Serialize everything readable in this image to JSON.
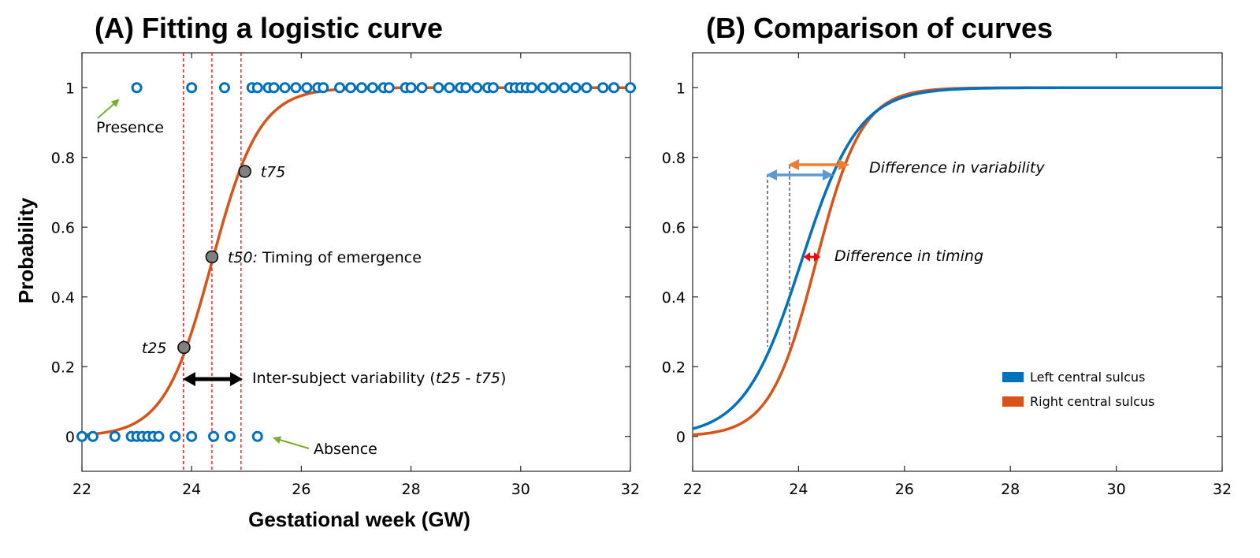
{
  "chart_data": [
    {
      "type": "scatter",
      "title": "(A) Fitting a logistic curve",
      "xlabel": "Gestational week (GW)",
      "ylabel": "Probability",
      "xlim": [
        22,
        32
      ],
      "ylim": [
        -0.1,
        1.1
      ],
      "xticks": [
        "22",
        "24",
        "26",
        "28",
        "30",
        "32"
      ],
      "yticks": [
        "0",
        "0.2",
        "0.4",
        "0.6",
        "0.8",
        "1"
      ],
      "xtick_values": [
        22,
        24,
        26,
        28,
        30,
        32
      ],
      "ytick_values": [
        0,
        0.2,
        0.4,
        0.6,
        0.8,
        1
      ],
      "grid": false,
      "colors": {
        "points": "#0072BD",
        "curve": "#D95319",
        "guides": "#FF0000",
        "milestones": "#808080",
        "labels": "#77AC30"
      },
      "series": [
        {
          "kind": "points",
          "y": 0,
          "x": [
            22.0,
            22.2,
            22.6,
            22.9,
            23.0,
            23.1,
            23.2,
            23.3,
            23.4,
            23.7,
            24.0,
            24.4,
            24.7,
            25.2
          ]
        },
        {
          "kind": "points",
          "y": 1,
          "x": [
            23.0,
            24.0,
            24.6,
            25.1,
            25.2,
            25.4,
            25.5,
            25.7,
            25.9,
            26.1,
            26.3,
            26.4,
            26.7,
            26.9,
            27.1,
            27.3,
            27.5,
            27.6,
            27.9,
            28.0,
            28.2,
            28.5,
            28.7,
            28.9,
            29.0,
            29.2,
            29.4,
            29.5,
            29.8,
            29.9,
            30.0,
            30.1,
            30.2,
            30.4,
            30.6,
            30.8,
            31.0,
            31.2,
            31.5,
            31.7,
            32.0
          ]
        },
        {
          "kind": "logistic-curve",
          "t50": 24.37,
          "slope": 2.3
        }
      ],
      "guides": [
        23.85,
        24.37,
        24.9
      ],
      "milestones": [
        {
          "x": 23.86,
          "y": 0.255,
          "label": "t25"
        },
        {
          "x": 24.37,
          "y": 0.515,
          "label": "t50:",
          "label_rest": " Timing of emergence"
        },
        {
          "x": 24.97,
          "y": 0.76,
          "label": "t75"
        }
      ],
      "annotations": {
        "presence": "Presence",
        "absence": "Absence",
        "variability_prefix": "Inter-subject variability (",
        "variability_t25": "t25",
        "variability_sep": " - ",
        "variability_t75": "t75",
        "variability_suffix": ")"
      }
    },
    {
      "type": "line",
      "title": "(B) Comparison of curves",
      "xlim": [
        22,
        32
      ],
      "ylim": [
        -0.1,
        1.1
      ],
      "xticks": [
        "22",
        "24",
        "26",
        "28",
        "30",
        "32"
      ],
      "yticks": [
        "0",
        "0.2",
        "0.4",
        "0.6",
        "0.8",
        "1"
      ],
      "xtick_values": [
        22,
        24,
        26,
        28,
        30,
        32
      ],
      "ytick_values": [
        0,
        0.2,
        0.4,
        0.6,
        0.8,
        1
      ],
      "grid": false,
      "legend_position": "bottom-right",
      "series": [
        {
          "name": "Left central sulcus",
          "color": "#0072BD",
          "t50": 24.05,
          "slope": 1.85
        },
        {
          "name": "Right central sulcus",
          "color": "#D95319",
          "t50": 24.33,
          "slope": 2.3
        }
      ],
      "annotations": {
        "variability": "Difference in variability",
        "timing": "Difference in timing",
        "colors": {
          "variability_left": "#5B9BD5",
          "variability_right": "#ED7D31",
          "timing": "#FF0000"
        }
      }
    }
  ]
}
